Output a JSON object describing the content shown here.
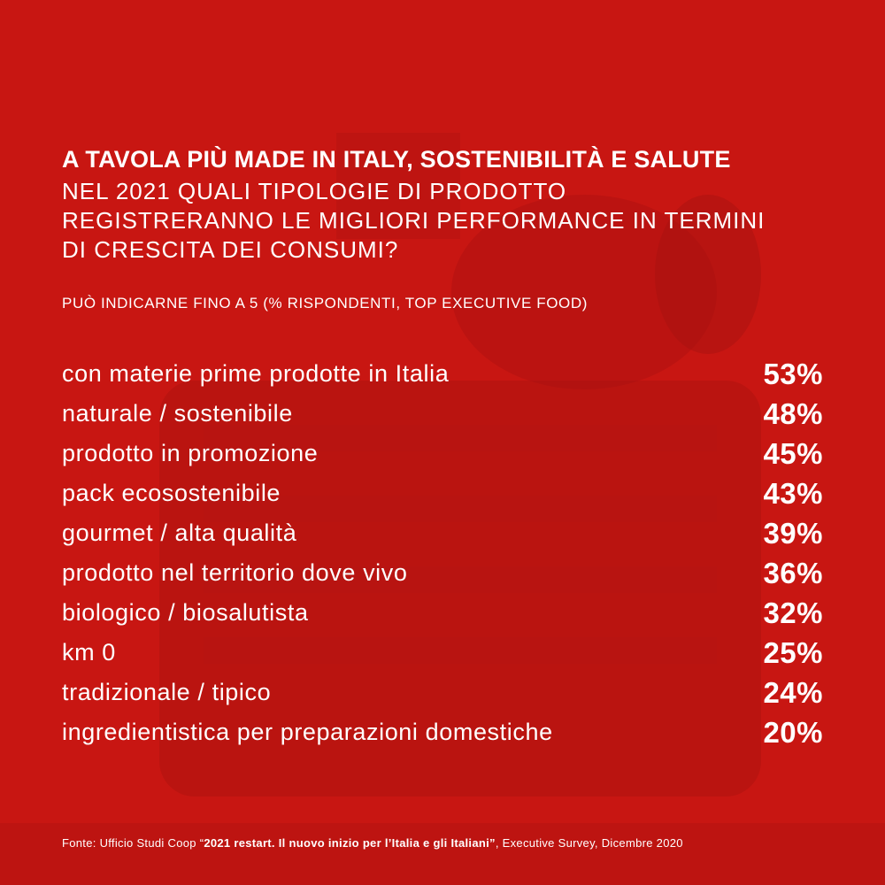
{
  "colors": {
    "background": "#c81612",
    "text": "#ffffff"
  },
  "header": {
    "title": "A TAVOLA PIÙ MADE IN ITALY, SOSTENIBILITÀ E SALUTE",
    "question_lines": [
      "NEL 2021 QUALI TIPOLOGIE DI PRODOTTO",
      "REGISTRERANNO LE MIGLIORI PERFORMANCE IN TERMINI",
      "DI CRESCITA DEI CONSUMI?"
    ],
    "note": "PUÒ INDICARNE FINO A 5 (% RISPONDENTI, TOP EXECUTIVE FOOD)"
  },
  "chart_data": {
    "type": "table",
    "categories": [
      "con materie prime prodotte in Italia",
      "naturale / sostenibile",
      "prodotto in promozione",
      "pack ecosostenibile",
      "gourmet / alta qualità",
      "prodotto nel territorio dove vivo",
      "biologico / biosalutista",
      "km 0",
      "tradizionale / tipico",
      "ingredientistica per preparazioni domestiche"
    ],
    "values": [
      53,
      48,
      45,
      43,
      39,
      36,
      32,
      25,
      24,
      20
    ],
    "value_labels": [
      "53%",
      "48%",
      "45%",
      "43%",
      "39%",
      "36%",
      "32%",
      "25%",
      "24%",
      "20%"
    ],
    "unit": "%"
  },
  "footer": {
    "source_prefix": "Fonte: Ufficio Studi Coop “",
    "source_bold": "2021 restart. Il nuovo inizio per l’Italia e gli Italiani”",
    "source_suffix": ", Executive Survey, Dicembre 2020"
  }
}
